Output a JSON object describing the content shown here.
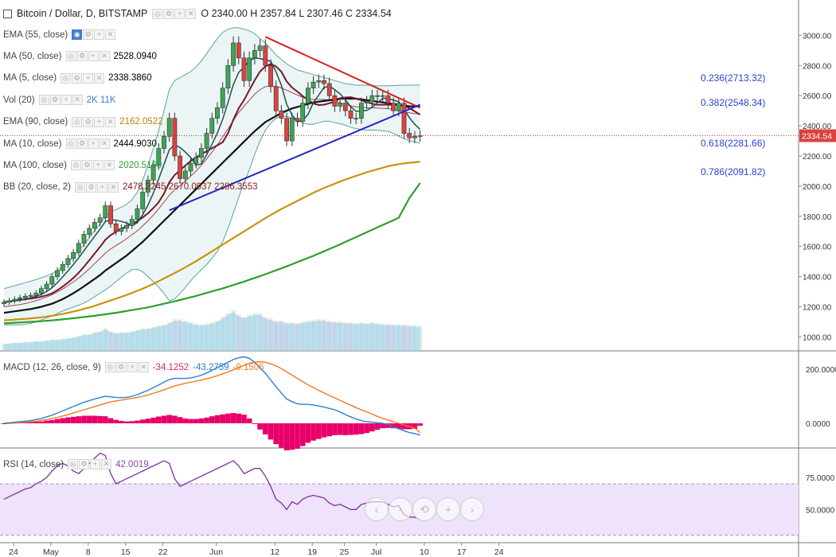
{
  "header": {
    "symbol": "Bitcoin / Dollar, D, BITSTAMP",
    "ohlc": "O 2340.00 H 2357.84 L 2307.46 C 2334.54"
  },
  "legend": [
    {
      "name": "EMA (55, close)",
      "value": "",
      "color": "#aaaaaa"
    },
    {
      "name": "MA (50, close)",
      "value": "2528.0940",
      "color": "#000000"
    },
    {
      "name": "MA (5, close)",
      "value": "2338.3860",
      "color": "#000000"
    },
    {
      "name": "Vol (20)",
      "value": "2K  11K",
      "color": "#3d7fd0"
    },
    {
      "name": "EMA (90, close)",
      "value": "2162.0522",
      "color": "#b8860b"
    },
    {
      "name": "MA (10, close)",
      "value": "2444.9030",
      "color": "#000000"
    },
    {
      "name": "MA (100, close)",
      "value": "2020.5160",
      "color": "#2ca02c"
    },
    {
      "name": "BB (20, close, 2)",
      "value": "2478.2245  2670.0937  2286.3553",
      "color": "#8b1a1a"
    }
  ],
  "fib": [
    {
      "label": "0.236(2713.32)",
      "price": 2713.32
    },
    {
      "label": "0.382(2548.34)",
      "price": 2548.34
    },
    {
      "label": "0.618(2281.66)",
      "price": 2281.66
    },
    {
      "label": "0.786(2091.82)",
      "price": 2091.82
    }
  ],
  "last_price": "2334.54",
  "controls": [
    "-",
    "⟲",
    "+"
  ],
  "macd_legend": {
    "name": "MACD (12, 26, close, 9)",
    "v1": "-34.1252",
    "v2": "-43.2759",
    "v3": "-9.1506"
  },
  "rsi_legend": {
    "name": "RSI (14, close)",
    "value": "42.0019"
  },
  "chart_data": [
    {
      "type": "candlestick",
      "title": "Bitcoin / Dollar, D, BITSTAMP",
      "yticks": [
        "3000.00",
        "2800.00",
        "2600.00",
        "2400.00",
        "2200.00",
        "2000.00",
        "1800.00",
        "1600.00",
        "1400.00",
        "1200.00",
        "1000.00"
      ],
      "xticks": [
        {
          "label": "24",
          "day": 0
        },
        {
          "label": "May",
          "day": 7
        },
        {
          "label": "8",
          "day": 14
        },
        {
          "label": "15",
          "day": 21
        },
        {
          "label": "22",
          "day": 28
        },
        {
          "label": "Jun",
          "day": 38
        },
        {
          "label": "12",
          "day": 49
        },
        {
          "label": "19",
          "day": 56
        },
        {
          "label": "25",
          "day": 62
        },
        {
          "label": "Jul",
          "day": 68
        },
        {
          "label": "10",
          "day": 77
        },
        {
          "label": "17",
          "day": 84
        },
        {
          "label": "24",
          "day": 91
        }
      ],
      "ylim": [
        960,
        3060
      ],
      "close": [
        1230,
        1240,
        1250,
        1260,
        1270,
        1275,
        1290,
        1320,
        1350,
        1400,
        1440,
        1480,
        1520,
        1560,
        1620,
        1680,
        1720,
        1760,
        1790,
        1870,
        1750,
        1700,
        1720,
        1740,
        1780,
        1850,
        1960,
        2040,
        2140,
        2250,
        2330,
        2450,
        2200,
        2050,
        2100,
        2150,
        2190,
        2250,
        2350,
        2450,
        2520,
        2650,
        2800,
        2950,
        2850,
        2700,
        2850,
        2900,
        2930,
        2800,
        2660,
        2500,
        2450,
        2300,
        2450,
        2430,
        2550,
        2650,
        2690,
        2700,
        2680,
        2600,
        2530,
        2550,
        2500,
        2450,
        2450,
        2550,
        2560,
        2600,
        2600,
        2600,
        2550,
        2500,
        2550,
        2350,
        2320,
        2330,
        2334.54
      ],
      "volume_k": [
        1.0,
        1.0,
        1.1,
        1.1,
        1.2,
        1.2,
        1.3,
        1.3,
        1.4,
        1.5,
        1.5,
        1.6,
        1.7,
        1.8,
        2.0,
        2.2,
        2.2,
        2.5,
        2.6,
        3.0,
        2.6,
        2.4,
        2.5,
        2.5,
        2.6,
        2.8,
        3.0,
        3.0,
        3.2,
        3.4,
        3.5,
        3.8,
        4.2,
        4.2,
        4.0,
        3.8,
        3.6,
        3.5,
        3.6,
        3.8,
        4.0,
        4.5,
        5.0,
        5.4,
        4.8,
        4.5,
        4.8,
        5.0,
        5.0,
        4.5,
        4.3,
        4.0,
        4.0,
        3.8,
        3.8,
        3.7,
        3.9,
        4.0,
        4.1,
        4.2,
        4.2,
        4.0,
        3.9,
        3.9,
        3.8,
        3.8,
        3.7,
        3.8,
        3.7,
        3.8,
        3.7,
        3.6,
        3.6,
        3.5,
        3.5,
        3.5,
        3.4,
        3.4,
        3.3
      ],
      "ma50": [
        1160,
        1165,
        1170,
        1175,
        1180,
        1185,
        1192,
        1200,
        1210,
        1220,
        1235,
        1250,
        1270,
        1290,
        1312,
        1335,
        1360,
        1385,
        1410,
        1440,
        1465,
        1490,
        1515,
        1540,
        1570,
        1600,
        1630,
        1665,
        1700,
        1735,
        1770,
        1805,
        1840,
        1875,
        1910,
        1945,
        1980,
        2015,
        2050,
        2085,
        2120,
        2155,
        2190,
        2225,
        2260,
        2295,
        2330,
        2365,
        2395,
        2425,
        2445,
        2465,
        2485,
        2500,
        2515,
        2525,
        2535,
        2545,
        2555,
        2560,
        2565,
        2570,
        2575,
        2580,
        2580,
        2580,
        2580,
        2575,
        2570,
        2565,
        2560,
        2555,
        2550,
        2545,
        2540,
        2535,
        2530,
        2529,
        2528.094
      ],
      "ema90": [
        1110,
        1112,
        1115,
        1118,
        1120,
        1123,
        1126,
        1130,
        1135,
        1140,
        1146,
        1152,
        1160,
        1168,
        1176,
        1186,
        1196,
        1206,
        1218,
        1230,
        1242,
        1254,
        1266,
        1278,
        1292,
        1306,
        1320,
        1336,
        1352,
        1370,
        1388,
        1406,
        1424,
        1442,
        1462,
        1482,
        1502,
        1524,
        1546,
        1568,
        1590,
        1612,
        1634,
        1656,
        1678,
        1700,
        1722,
        1744,
        1766,
        1788,
        1808,
        1828,
        1848,
        1866,
        1884,
        1902,
        1920,
        1938,
        1956,
        1972,
        1988,
        2002,
        2016,
        2030,
        2044,
        2056,
        2068,
        2080,
        2092,
        2102,
        2112,
        2122,
        2132,
        2140,
        2146,
        2151,
        2155,
        2158,
        2162.0522
      ],
      "ma100": [
        1090,
        1092,
        1094,
        1096,
        1098,
        1100,
        1102,
        1104,
        1107,
        1110,
        1113,
        1116,
        1120,
        1124,
        1128,
        1132,
        1136,
        1140,
        1145,
        1150,
        1155,
        1160,
        1166,
        1172,
        1178,
        1184,
        1190,
        1196,
        1204,
        1212,
        1220,
        1228,
        1236,
        1245,
        1254,
        1263,
        1272,
        1282,
        1292,
        1302,
        1312,
        1322,
        1333,
        1344,
        1355,
        1367,
        1379,
        1391,
        1403,
        1416,
        1429,
        1442,
        1455,
        1468,
        1482,
        1496,
        1510,
        1524,
        1538,
        1553,
        1568,
        1583,
        1598,
        1614,
        1630,
        1646,
        1662,
        1678,
        1694,
        1710,
        1726,
        1742,
        1758,
        1774,
        1790,
        1856,
        1922,
        1970,
        2020.516
      ],
      "bb_mid": [
        1200,
        1205,
        1210,
        1215,
        1222,
        1230,
        1240,
        1252,
        1265,
        1280,
        1298,
        1318,
        1340,
        1364,
        1390,
        1420,
        1452,
        1486,
        1520,
        1556,
        1584,
        1606,
        1628,
        1652,
        1678,
        1704,
        1736,
        1770,
        1808,
        1850,
        1894,
        1940,
        1976,
        2004,
        2034,
        2066,
        2100,
        2138,
        2180,
        2226,
        2274,
        2326,
        2380,
        2436,
        2488,
        2530,
        2570,
        2610,
        2640,
        2660,
        2664,
        2660,
        2652,
        2636,
        2620,
        2604,
        2590,
        2580,
        2575,
        2575,
        2575,
        2570,
        2560,
        2552,
        2542,
        2532,
        2526,
        2522,
        2520,
        2520,
        2518,
        2516,
        2514,
        2508,
        2500,
        2492,
        2486,
        2481,
        2478.2245
      ],
      "bb_upper": [
        1320,
        1330,
        1340,
        1350,
        1360,
        1370,
        1380,
        1392,
        1405,
        1420,
        1440,
        1465,
        1495,
        1530,
        1570,
        1615,
        1660,
        1705,
        1750,
        1800,
        1830,
        1845,
        1860,
        1880,
        1910,
        1960,
        2040,
        2140,
        2250,
        2370,
        2500,
        2640,
        2700,
        2720,
        2740,
        2760,
        2790,
        2830,
        2880,
        2930,
        2980,
        3020,
        3040,
        3050,
        3050,
        3040,
        3030,
        3010,
        2980,
        2950,
        2910,
        2870,
        2840,
        2810,
        2790,
        2770,
        2760,
        2750,
        2740,
        2730,
        2720,
        2710,
        2700,
        2690,
        2680,
        2675,
        2670,
        2670,
        2670,
        2668,
        2666,
        2665,
        2665,
        2667,
        2668,
        2670,
        2670,
        2670,
        2670.0937
      ],
      "bb_lower": [
        1080,
        1080,
        1080,
        1080,
        1084,
        1090,
        1100,
        1112,
        1125,
        1140,
        1156,
        1171,
        1185,
        1198,
        1210,
        1225,
        1244,
        1267,
        1290,
        1312,
        1338,
        1367,
        1396,
        1424,
        1446,
        1448,
        1432,
        1400,
        1366,
        1330,
        1288,
        1240,
        1252,
        1288,
        1328,
        1372,
        1410,
        1446,
        1480,
        1522,
        1568,
        1632,
        1720,
        1822,
        1926,
        2020,
        2110,
        2210,
        2300,
        2370,
        2418,
        2450,
        2464,
        2462,
        2450,
        2438,
        2420,
        2410,
        2410,
        2420,
        2430,
        2430,
        2420,
        2414,
        2404,
        2389,
        2382,
        2374,
        2370,
        2372,
        2370,
        2367,
        2363,
        2349,
        2332,
        2314,
        2302,
        2292,
        2286.3553
      ],
      "fib_retracement": [
        {
          "level": 0.236,
          "price": 2713.32
        },
        {
          "level": 0.382,
          "price": 2548.34
        },
        {
          "level": 0.618,
          "price": 2281.66
        },
        {
          "level": 0.786,
          "price": 2091.82
        }
      ],
      "trendlines": [
        {
          "color": "#d62222",
          "from": [
            49,
            2990
          ],
          "to": [
            78,
            2520
          ]
        },
        {
          "color": "#2222cc",
          "from": [
            31,
            1840
          ],
          "to": [
            78,
            2540
          ]
        }
      ]
    },
    {
      "type": "line",
      "title": "MACD (12, 26, close, 9)",
      "yticks": [
        "200.0000",
        "0.0000"
      ],
      "ylim": [
        -120,
        280
      ],
      "macd": [
        0,
        2,
        4,
        6,
        8,
        10,
        14,
        18,
        24,
        30,
        38,
        46,
        54,
        62,
        70,
        78,
        84,
        90,
        95,
        100,
        98,
        96,
        95,
        96,
        100,
        106,
        114,
        122,
        132,
        142,
        152,
        162,
        166,
        166,
        166,
        168,
        172,
        178,
        186,
        196,
        206,
        216,
        226,
        236,
        242,
        246,
        240,
        225,
        205,
        185,
        160,
        135,
        112,
        90,
        80,
        72,
        70,
        70,
        68,
        64,
        60,
        55,
        50,
        42,
        32,
        24,
        16,
        10,
        6,
        4,
        2,
        0,
        -5,
        -12,
        -20,
        -28,
        -34,
        -38,
        -43.2759
      ],
      "signal": [
        0,
        0,
        1,
        2,
        4,
        6,
        8,
        11,
        14,
        18,
        22,
        27,
        32,
        38,
        44,
        50,
        56,
        62,
        68,
        74,
        79,
        83,
        86,
        89,
        92,
        96,
        100,
        105,
        111,
        117,
        124,
        131,
        138,
        143,
        148,
        152,
        156,
        160,
        165,
        170,
        176,
        183,
        190,
        198,
        206,
        214,
        222,
        226,
        228,
        226,
        220,
        212,
        202,
        190,
        178,
        166,
        154,
        142,
        132,
        122,
        112,
        103,
        94,
        85,
        76,
        67,
        58,
        50,
        42,
        34,
        26,
        18,
        12,
        6,
        0,
        -6,
        -12,
        -18,
        -34.1252
      ],
      "histogram": [
        0,
        2,
        3,
        4,
        4,
        4,
        6,
        7,
        10,
        12,
        16,
        19,
        22,
        24,
        26,
        28,
        28,
        28,
        27,
        26,
        19,
        13,
        9,
        7,
        8,
        10,
        14,
        17,
        21,
        25,
        28,
        31,
        28,
        23,
        18,
        16,
        16,
        18,
        21,
        26,
        30,
        33,
        36,
        38,
        36,
        32,
        18,
        -1,
        -23,
        -41,
        -60,
        -77,
        -90,
        -100,
        -98,
        -94,
        -84,
        -72,
        -64,
        -58,
        -52,
        -48,
        -44,
        -43,
        -44,
        -43,
        -42,
        -40,
        -36,
        -30,
        -24,
        -18,
        -17,
        -18,
        -20,
        -22,
        -22,
        -20,
        -9.1506
      ]
    },
    {
      "type": "line",
      "title": "RSI (14, close)",
      "yticks": [
        "75.0000",
        "50.0000"
      ],
      "ylim": [
        30,
        95
      ],
      "band": [
        30,
        70
      ],
      "rsi": [
        58,
        60,
        62,
        64,
        66,
        67,
        70,
        72,
        75,
        80,
        84,
        86,
        84,
        80,
        78,
        82,
        86,
        90,
        94,
        92,
        78,
        70,
        72,
        74,
        76,
        78,
        80,
        82,
        84,
        86,
        88,
        86,
        74,
        68,
        70,
        72,
        74,
        76,
        78,
        80,
        82,
        84,
        86,
        88,
        84,
        78,
        80,
        82,
        82,
        76,
        68,
        58,
        55,
        50,
        56,
        54,
        58,
        60,
        61,
        60,
        59,
        55,
        53,
        54,
        52,
        50,
        50,
        54,
        55,
        56,
        56,
        56,
        54,
        52,
        53,
        46,
        44,
        44,
        42.0019
      ]
    }
  ]
}
